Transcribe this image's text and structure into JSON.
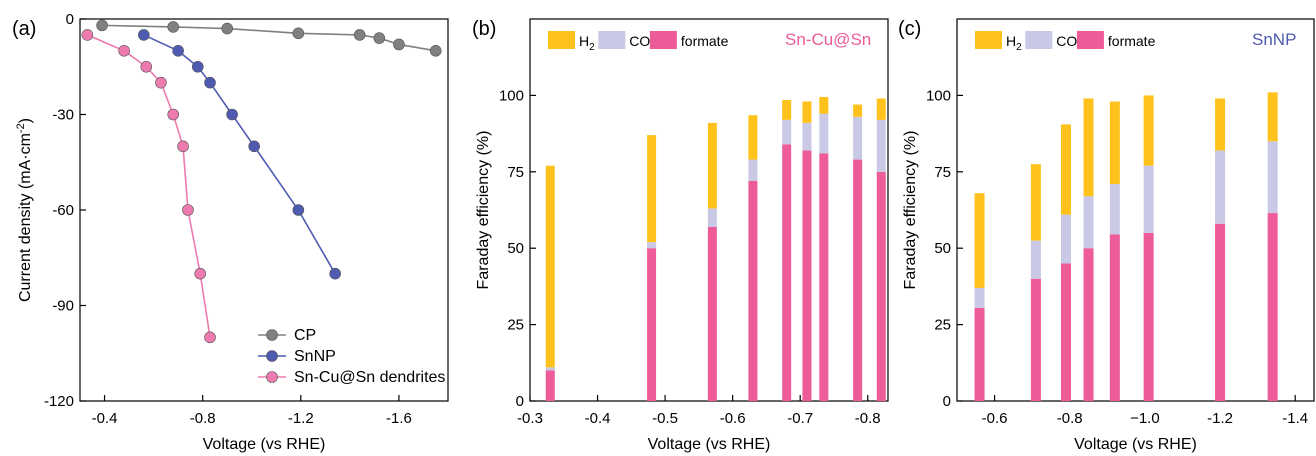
{
  "chart_data": [
    {
      "type": "line",
      "panel_label": "(a)",
      "xlabel": "Voltage (vs RHE)",
      "ylabel": "Current density (mA·cm",
      "ylabel_sup": "-2",
      "ylabel_close": ")",
      "xlim": [
        -0.3,
        -1.8
      ],
      "ylim": [
        -120,
        0
      ],
      "xticks": [
        -0.4,
        -0.8,
        -1.2,
        -1.6
      ],
      "xtick_labels": [
        "-0.4",
        "-0.8",
        "-1.2",
        "-1.6"
      ],
      "yticks": [
        0,
        -30,
        -60,
        -90,
        -120
      ],
      "ytick_labels": [
        "0",
        "-30",
        "-60",
        "-90",
        "-120"
      ],
      "series": [
        {
          "name": "CP",
          "color": "#808080",
          "x": [
            -0.39,
            -0.68,
            -0.9,
            -1.19,
            -1.44,
            -1.52,
            -1.6,
            -1.75
          ],
          "y": [
            -2,
            -2.5,
            -3,
            -4.5,
            -5,
            -6,
            -8,
            -10
          ]
        },
        {
          "name": "SnNP",
          "color": "#4F5BB0",
          "x": [
            -0.56,
            -0.7,
            -0.78,
            -0.83,
            -0.92,
            -1.01,
            -1.19,
            -1.34
          ],
          "y": [
            -5,
            -10,
            -15,
            -20,
            -30,
            -40,
            -60,
            -80
          ]
        },
        {
          "name": "Sn-Cu@Sn dendrites",
          "color": "#EE7BB0",
          "x": [
            -0.33,
            -0.48,
            -0.57,
            -0.63,
            -0.68,
            -0.72,
            -0.74,
            -0.79,
            -0.83
          ],
          "y": [
            -5,
            -10,
            -15,
            -20,
            -30,
            -40,
            -60,
            -80,
            -100
          ]
        }
      ],
      "legend_placement": "bottom-right"
    },
    {
      "type": "bar",
      "stacked": true,
      "panel_label": "(b)",
      "inset_label": "Sn-Cu@Sn",
      "inset_color": "#EE5B99",
      "xlabel": "Voltage (vs RHE)",
      "ylabel": "Faraday efficiency (%)",
      "xlim": [
        -0.3,
        -0.83
      ],
      "ylim": [
        0,
        125
      ],
      "xticks": [
        -0.3,
        -0.4,
        -0.5,
        -0.6,
        -0.7,
        -0.8
      ],
      "xtick_labels": [
        "-0.3",
        "-0.4",
        "-0.5",
        "-0.6",
        "-0.7",
        "-0.8"
      ],
      "yticks": [
        0,
        25,
        50,
        75,
        100
      ],
      "ytick_labels": [
        "0",
        "25",
        "50",
        "75",
        "100"
      ],
      "x": [
        -0.33,
        -0.48,
        -0.57,
        -0.63,
        -0.68,
        -0.71,
        -0.735,
        -0.785,
        -0.82
      ],
      "series": [
        {
          "name": "formate",
          "color": "#EE5B99",
          "values": [
            10,
            50,
            57,
            72,
            84,
            82,
            81,
            79,
            75
          ]
        },
        {
          "name": "CO",
          "color": "#C9C9E6",
          "values": [
            1,
            2,
            6,
            7,
            8,
            9,
            13,
            14,
            17
          ]
        },
        {
          "name": "H2",
          "color": "#FFC21C",
          "values": [
            66,
            35,
            28,
            14.5,
            6.5,
            7,
            5.5,
            4,
            7
          ]
        }
      ],
      "legend_items": [
        {
          "label": "H",
          "sub": "2",
          "color": "#FFC21C"
        },
        {
          "label": "CO",
          "sub": "",
          "color": "#C9C9E6"
        },
        {
          "label": "formate",
          "sub": "",
          "color": "#EE5B99"
        }
      ],
      "legend_placement": "top"
    },
    {
      "type": "bar",
      "stacked": true,
      "panel_label": "(c)",
      "inset_label": "SnNP",
      "inset_color": "#4F5BB0",
      "xlabel": "Voltage (vs RHE)",
      "ylabel": "Faraday efficiency (%)",
      "xlim": [
        -0.5,
        -1.45
      ],
      "ylim": [
        0,
        125
      ],
      "xticks": [
        -0.6,
        -0.8,
        -1.0,
        -1.2,
        -1.4
      ],
      "xtick_labels": [
        "-0.6",
        "-0.8",
        "−1.0",
        "-1.2",
        "-1.4"
      ],
      "yticks": [
        0,
        25,
        50,
        75,
        100
      ],
      "ytick_labels": [
        "0",
        "25",
        "50",
        "75",
        "100"
      ],
      "x": [
        -0.56,
        -0.71,
        -0.79,
        -0.85,
        -0.92,
        -1.01,
        -1.2,
        -1.34
      ],
      "series": [
        {
          "name": "formate",
          "color": "#EE5B99",
          "values": [
            30.5,
            40,
            45,
            50,
            54.5,
            55,
            58,
            61.5
          ]
        },
        {
          "name": "CO",
          "color": "#C9C9E6",
          "values": [
            6.5,
            12.5,
            16,
            17,
            16.5,
            22,
            24,
            23.5
          ]
        },
        {
          "name": "H2",
          "color": "#FFC21C",
          "values": [
            31,
            25,
            29.5,
            32,
            27,
            23,
            17,
            16
          ]
        }
      ],
      "legend_items": [
        {
          "label": "H",
          "sub": "2",
          "color": "#FFC21C"
        },
        {
          "label": "CO",
          "sub": "",
          "color": "#C9C9E6"
        },
        {
          "label": "formate",
          "sub": "",
          "color": "#EE5B99"
        }
      ],
      "legend_placement": "top"
    }
  ]
}
